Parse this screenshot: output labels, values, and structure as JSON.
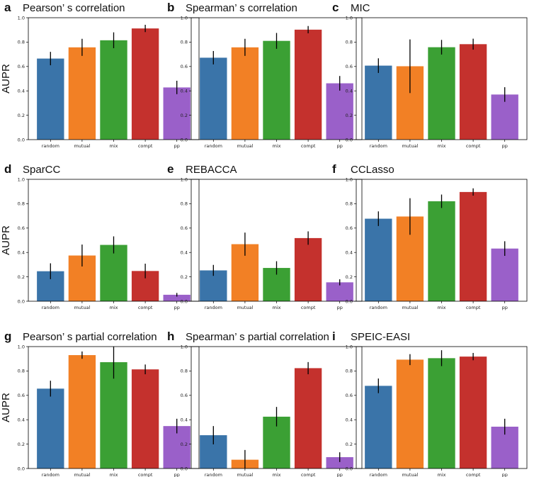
{
  "figure": {
    "ylabel": "AUPR",
    "colors": {
      "random": "#3a74a9",
      "mutual": "#f28025",
      "mix": "#3ba034",
      "compt": "#c4312d",
      "pp": "#9a60c9"
    }
  },
  "chart_data": [
    {
      "type": "bar",
      "letter": "a",
      "title": "Pearson’ s correlation",
      "categories": [
        "random",
        "mutual",
        "mix",
        "compt",
        "pp"
      ],
      "values": [
        0.665,
        0.757,
        0.815,
        0.912,
        0.428
      ],
      "errors": [
        0.055,
        0.07,
        0.065,
        0.03,
        0.055
      ],
      "ylim": [
        0,
        1.0
      ],
      "yticks": [
        "0.0",
        "0.2",
        "0.4",
        "0.6",
        "0.8",
        "1.0"
      ],
      "ylabel": "AUPR"
    },
    {
      "type": "bar",
      "letter": "b",
      "title": "Spearman’ s correlation",
      "categories": [
        "random",
        "mutual",
        "mix",
        "compt",
        "pp"
      ],
      "values": [
        0.672,
        0.757,
        0.81,
        0.902,
        0.462
      ],
      "errors": [
        0.055,
        0.07,
        0.065,
        0.03,
        0.06
      ],
      "ylim": [
        0,
        1.0
      ],
      "yticks": [
        "0.0",
        "0.2",
        "0.4",
        "0.6",
        "0.8",
        "1.0"
      ],
      "ylabel": ""
    },
    {
      "type": "bar",
      "letter": "c",
      "title": "MIC",
      "categories": [
        "random",
        "mutual",
        "mix",
        "compt",
        "pp"
      ],
      "values": [
        0.607,
        0.602,
        0.758,
        0.783,
        0.37
      ],
      "errors": [
        0.06,
        0.22,
        0.06,
        0.045,
        0.06
      ],
      "ylim": [
        0,
        1.0
      ],
      "yticks": [
        "0.0",
        "0.2",
        "0.4",
        "0.6",
        "0.8",
        "1.0"
      ],
      "ylabel": ""
    },
    {
      "type": "bar",
      "letter": "d",
      "title": "SparCC",
      "categories": [
        "random",
        "mutual",
        "mix",
        "compt",
        "pp"
      ],
      "values": [
        0.246,
        0.375,
        0.462,
        0.248,
        0.053
      ],
      "errors": [
        0.065,
        0.09,
        0.07,
        0.06,
        0.015
      ],
      "ylim": [
        0,
        1.0
      ],
      "yticks": [
        "0.0",
        "0.2",
        "0.4",
        "0.6",
        "0.8",
        "1.0"
      ],
      "ylabel": "AUPR"
    },
    {
      "type": "bar",
      "letter": "e",
      "title": "REBACCA",
      "categories": [
        "random",
        "mutual",
        "mix",
        "compt",
        "pp"
      ],
      "values": [
        0.253,
        0.468,
        0.273,
        0.518,
        0.155
      ],
      "errors": [
        0.045,
        0.095,
        0.055,
        0.055,
        0.025
      ],
      "ylim": [
        0,
        1.0
      ],
      "yticks": [
        "0.0",
        "0.2",
        "0.4",
        "0.6",
        "0.8",
        "1.0"
      ],
      "ylabel": ""
    },
    {
      "type": "bar",
      "letter": "f",
      "title": "CCLasso",
      "categories": [
        "random",
        "mutual",
        "mix",
        "compt",
        "pp"
      ],
      "values": [
        0.677,
        0.695,
        0.82,
        0.896,
        0.432
      ],
      "errors": [
        0.06,
        0.15,
        0.055,
        0.03,
        0.06
      ],
      "ylim": [
        0,
        1.0
      ],
      "yticks": [
        "0.0",
        "0.2",
        "0.4",
        "0.6",
        "0.8",
        "1.0"
      ],
      "ylabel": ""
    },
    {
      "type": "bar",
      "letter": "g",
      "title": "Pearson’ s partial correlation",
      "categories": [
        "random",
        "mutual",
        "mix",
        "compt",
        "pp"
      ],
      "values": [
        0.655,
        0.93,
        0.872,
        0.813,
        0.348
      ],
      "errors": [
        0.065,
        0.03,
        0.135,
        0.04,
        0.06
      ],
      "ylim": [
        0,
        1.0
      ],
      "yticks": [
        "0.0",
        "0.2",
        "0.4",
        "0.6",
        "0.8",
        "1.0"
      ],
      "ylabel": "AUPR"
    },
    {
      "type": "bar",
      "letter": "h",
      "title": "Spearman’ s partial correlation",
      "categories": [
        "random",
        "mutual",
        "mix",
        "compt",
        "pp"
      ],
      "values": [
        0.273,
        0.072,
        0.425,
        0.823,
        0.093
      ],
      "errors": [
        0.075,
        0.08,
        0.08,
        0.05,
        0.04
      ],
      "ylim": [
        0,
        1.0
      ],
      "yticks": [
        "0.0",
        "0.2",
        "0.4",
        "0.6",
        "0.8",
        "1.0"
      ],
      "ylabel": ""
    },
    {
      "type": "bar",
      "letter": "i",
      "title": "SPEIC-EASI",
      "categories": [
        "random",
        "mutual",
        "mix",
        "compt",
        "pp"
      ],
      "values": [
        0.678,
        0.893,
        0.905,
        0.918,
        0.343
      ],
      "errors": [
        0.06,
        0.045,
        0.065,
        0.03,
        0.065
      ],
      "ylim": [
        0,
        1.0
      ],
      "yticks": [
        "0.0",
        "0.2",
        "0.4",
        "0.6",
        "0.8",
        "1.0"
      ],
      "ylabel": ""
    }
  ]
}
